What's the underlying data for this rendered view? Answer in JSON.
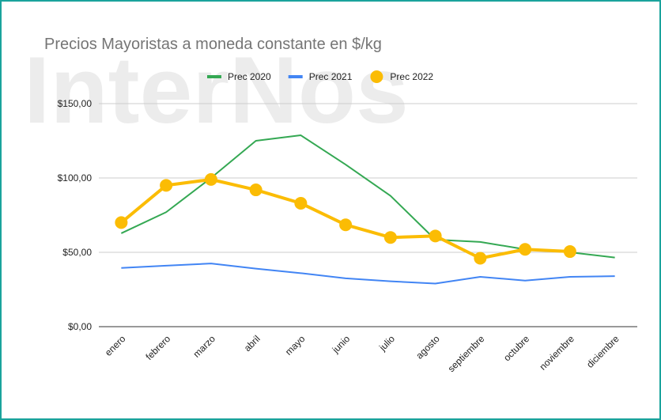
{
  "chart_data": {
    "type": "line",
    "watermark": "InterNos",
    "title": "Precios Mayoristas a moneda constante en $/kg",
    "categories": [
      "enero",
      "febrero",
      "marzo",
      "abril",
      "mayo",
      "junio",
      "julio",
      "agosto",
      "septiembre",
      "octubre",
      "noviembre",
      "diciembre"
    ],
    "series": [
      {
        "name": "Prec 2020",
        "color": "#34a853",
        "values": [
          62.8,
          77,
          100,
          125,
          128.7,
          109,
          88,
          58.5,
          57,
          52,
          50,
          46.5
        ]
      },
      {
        "name": "Prec 2021",
        "color": "#4285f4",
        "values": [
          39.5,
          41,
          42.5,
          39,
          36,
          32.5,
          30.5,
          29,
          33.5,
          31,
          33.5,
          34
        ]
      },
      {
        "name": "Prec 2022",
        "color": "#fbbc04",
        "markers": true,
        "values": [
          70,
          95,
          99,
          92,
          83,
          68.5,
          60,
          61,
          46,
          52,
          50.5,
          null
        ]
      }
    ],
    "ylim": [
      0,
      150
    ],
    "yticks": [
      {
        "value": 0,
        "label": "$0,00"
      },
      {
        "value": 50,
        "label": "$50,00"
      },
      {
        "value": 100,
        "label": "$100,00"
      },
      {
        "value": 150,
        "label": "$150,00"
      }
    ],
    "grid": true,
    "legend": "top"
  }
}
